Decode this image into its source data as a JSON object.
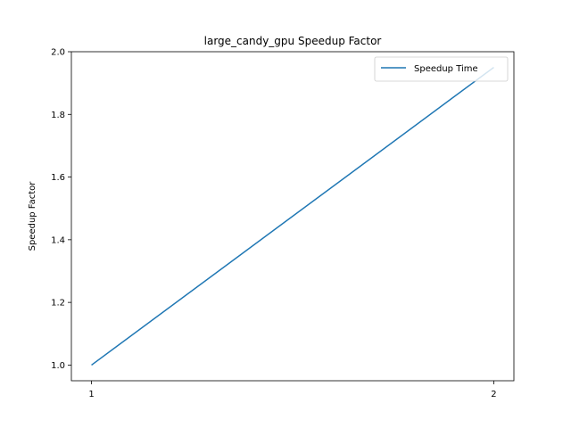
{
  "chart_data": {
    "type": "line",
    "title": "large_candy_gpu Speedup Factor",
    "xlabel": "",
    "ylabel": "Speedup Factor",
    "x": [
      1,
      2
    ],
    "xticks": [
      "1",
      "2"
    ],
    "yticks": [
      "1.0",
      "1.2",
      "1.4",
      "1.6",
      "1.8",
      "2.0"
    ],
    "xlim": [
      0.95,
      2.05
    ],
    "ylim": [
      0.95,
      2.0
    ],
    "grid": false,
    "legend_position": "top-right",
    "series": [
      {
        "name": "Speedup Time",
        "color": "#1f77b4",
        "values": [
          1.0,
          1.95
        ]
      }
    ]
  }
}
